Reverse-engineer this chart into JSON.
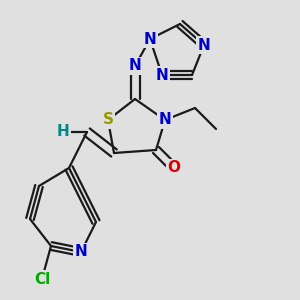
{
  "background_color": "#e0e0e0",
  "bond_color": "#1a1a1a",
  "bond_width": 1.6,
  "figsize": [
    3.0,
    3.0
  ],
  "dpi": 100,
  "atom_labels": {
    "S": {
      "color": "#999900"
    },
    "O": {
      "color": "#dd0000"
    },
    "N": {
      "color": "#0000cc"
    },
    "H": {
      "color": "#008888"
    },
    "Cl": {
      "color": "#00aa00"
    }
  }
}
